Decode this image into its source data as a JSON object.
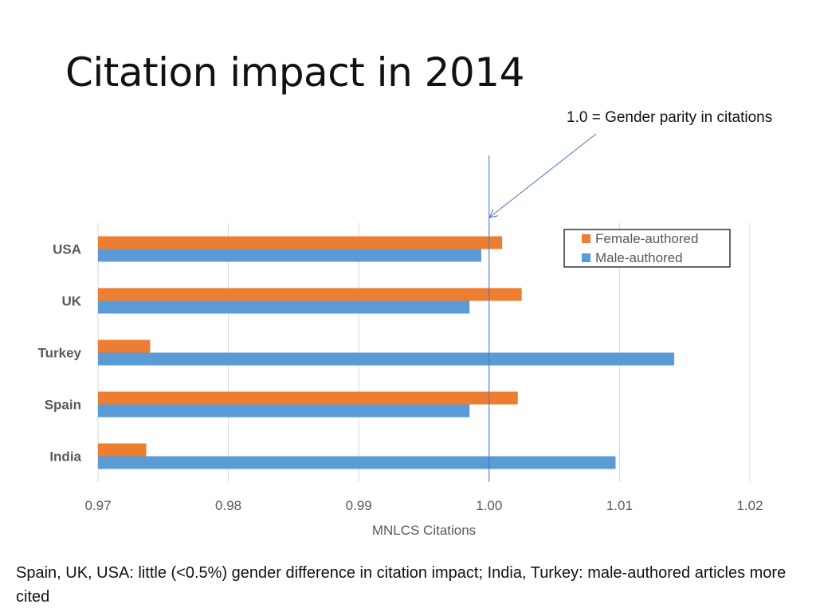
{
  "slide": {
    "title": "Citation impact in 2014",
    "annotation": "1.0 = Gender parity in citations",
    "footer": "Spain, UK, USA: little (<0.5%) gender difference in citation impact; India, Turkey: male-authored articles more cited"
  },
  "chart_data": {
    "type": "bar",
    "orientation": "horizontal",
    "title": "",
    "xlabel": "MNLCS Citations",
    "ylabel": "",
    "xlim": [
      0.97,
      1.02
    ],
    "xticks": [
      0.97,
      0.98,
      0.99,
      1.0,
      1.01,
      1.02
    ],
    "xtick_labels": [
      "0.97",
      "0.98",
      "0.99",
      "1.00",
      "1.01",
      "1.02"
    ],
    "grid": true,
    "reference_line": 1.0,
    "legend_position": "top-right",
    "categories": [
      "USA",
      "UK",
      "Turkey",
      "Spain",
      "India"
    ],
    "series": [
      {
        "name": "Female-authored",
        "color": "#ED7D31",
        "values": [
          1.001,
          1.0025,
          0.974,
          1.0022,
          0.9737
        ]
      },
      {
        "name": "Male-authored",
        "color": "#5B9BD5",
        "values": [
          0.9994,
          0.9985,
          1.0142,
          0.9985,
          1.0097
        ]
      }
    ]
  }
}
